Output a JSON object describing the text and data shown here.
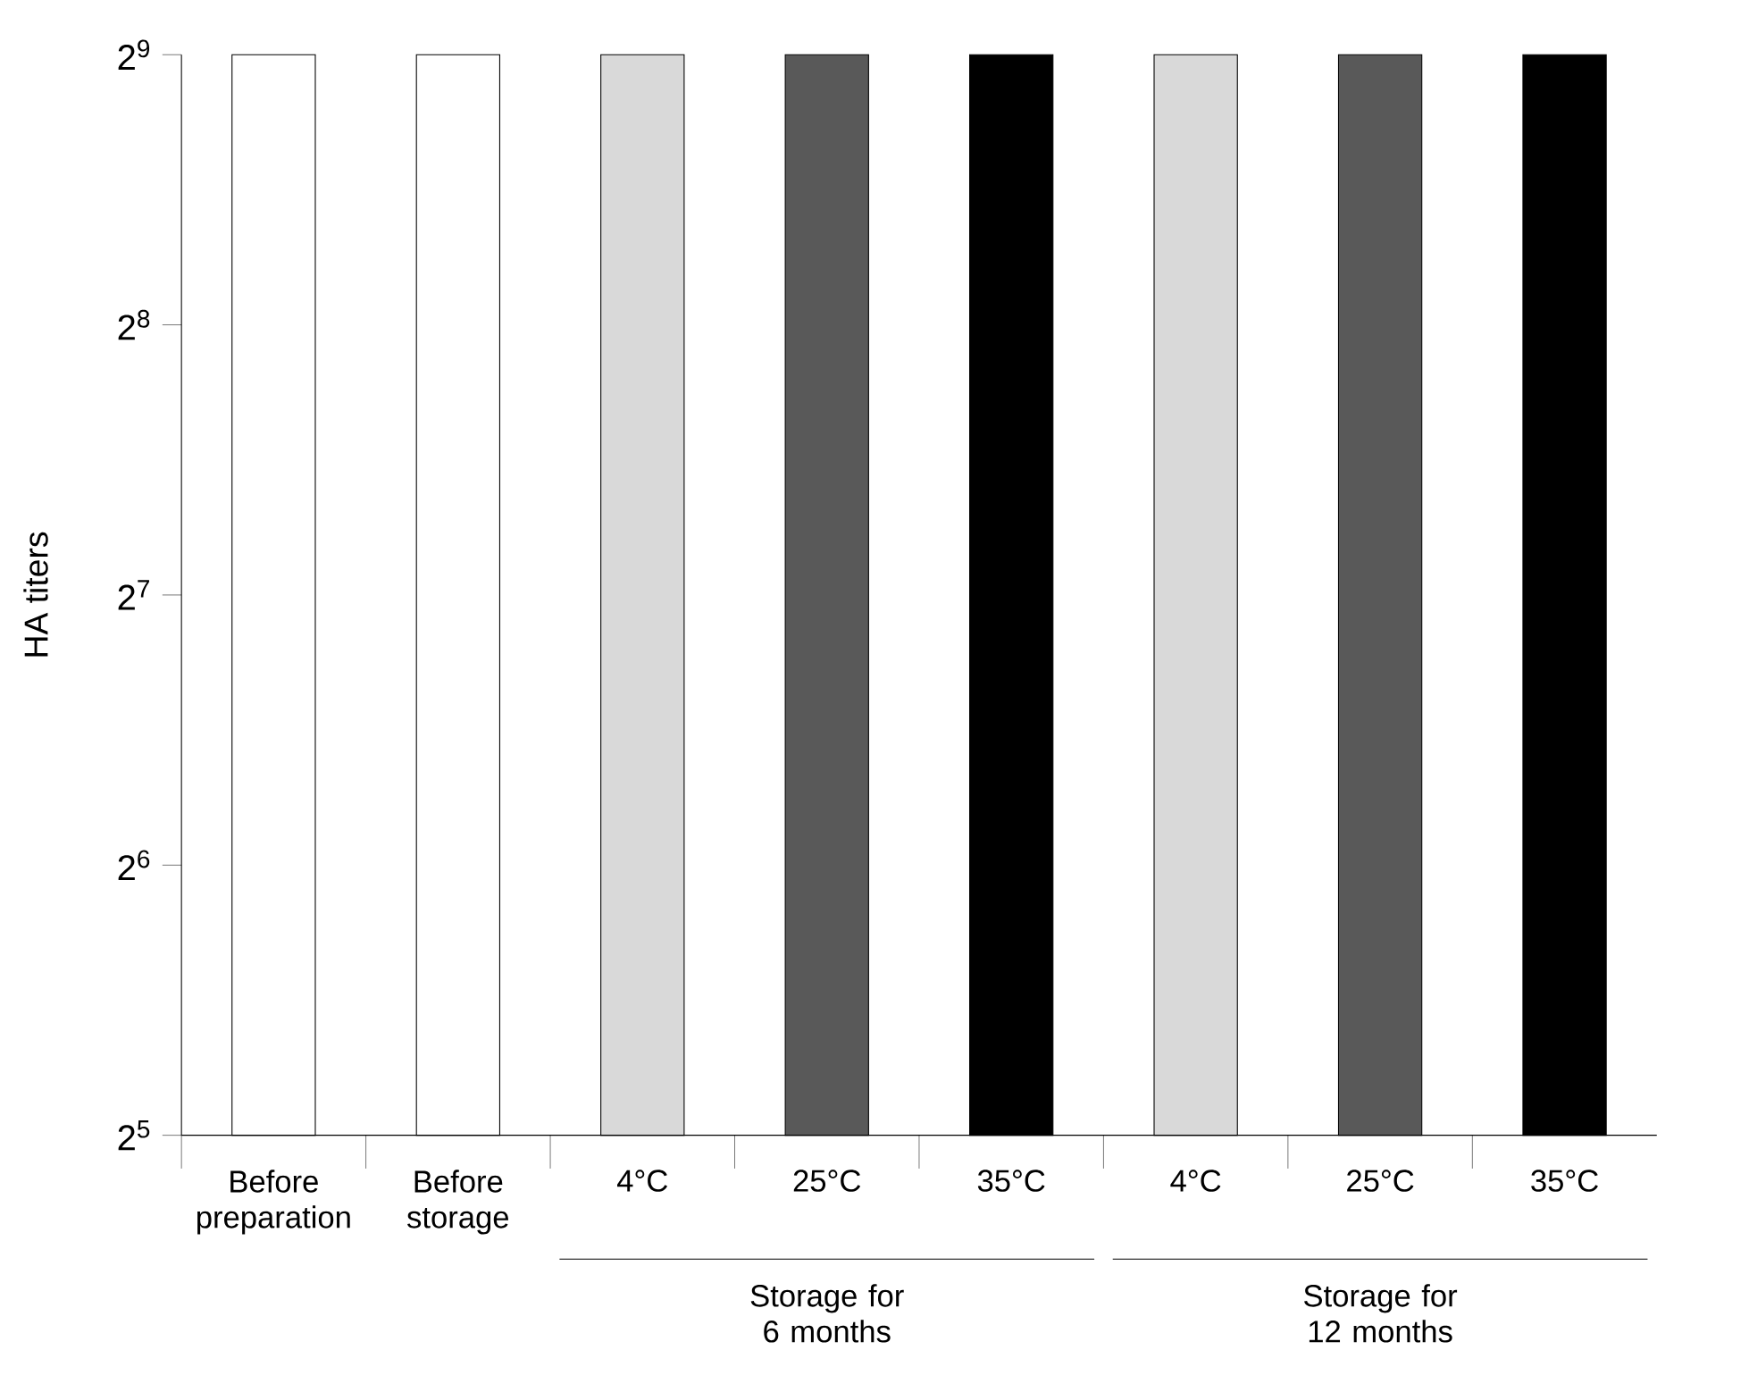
{
  "chart_data": {
    "type": "bar",
    "ylabel": "HA titers",
    "categories": [
      "Before preparation",
      "Before storage",
      "4°C",
      "25°C",
      "35°C",
      "4°C",
      "25°C",
      "35°C"
    ],
    "values": [
      512,
      512,
      512,
      512,
      512,
      512,
      512,
      512
    ],
    "colors": [
      "#ffffff",
      "#ffffff",
      "#d9d9d9",
      "#595959",
      "#000000",
      "#d9d9d9",
      "#595959",
      "#000000"
    ],
    "log": "y",
    "ylim": [
      32,
      512
    ],
    "yticks": [
      {
        "value": 32,
        "label": "2$^{5}$"
      },
      {
        "value": 64,
        "label": "2$^{6}$"
      },
      {
        "value": 128,
        "label": "2$^{7}$"
      },
      {
        "value": 256,
        "label": "2$^{8}$"
      },
      {
        "value": 512,
        "label": "2$^{9}$"
      }
    ],
    "annotations": [
      "Storage for 6 months",
      "Storage for 12 months"
    ]
  }
}
